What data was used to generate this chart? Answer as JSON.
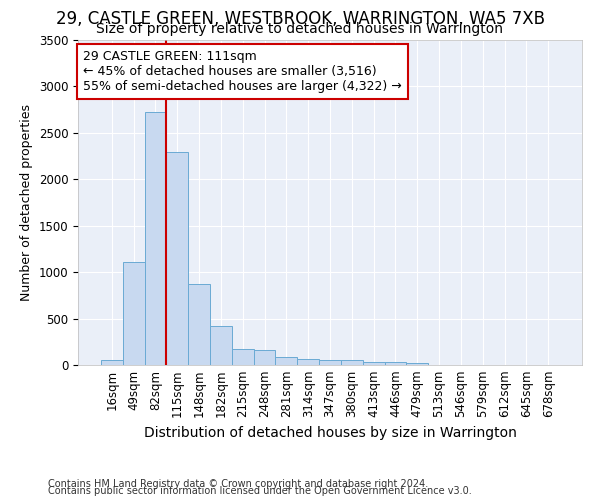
{
  "title1": "29, CASTLE GREEN, WESTBROOK, WARRINGTON, WA5 7XB",
  "title2": "Size of property relative to detached houses in Warrington",
  "xlabel": "Distribution of detached houses by size in Warrington",
  "ylabel": "Number of detached properties",
  "categories": [
    "16sqm",
    "49sqm",
    "82sqm",
    "115sqm",
    "148sqm",
    "182sqm",
    "215sqm",
    "248sqm",
    "281sqm",
    "314sqm",
    "347sqm",
    "380sqm",
    "413sqm",
    "446sqm",
    "479sqm",
    "513sqm",
    "546sqm",
    "579sqm",
    "612sqm",
    "645sqm",
    "678sqm"
  ],
  "values": [
    55,
    1110,
    2730,
    2290,
    870,
    420,
    170,
    165,
    90,
    65,
    55,
    50,
    30,
    30,
    20,
    5,
    3,
    2,
    1,
    1,
    1
  ],
  "bar_color": "#c8d9f0",
  "bar_edge_color": "#6aaad4",
  "bg_color": "#eaeff8",
  "grid_color": "#ffffff",
  "vline_color": "#cc0000",
  "annotation_line1": "29 CASTLE GREEN: 111sqm",
  "annotation_line2": "← 45% of detached houses are smaller (3,516)",
  "annotation_line3": "55% of semi-detached houses are larger (4,322) →",
  "annotation_box_edgecolor": "#cc0000",
  "footer1": "Contains HM Land Registry data © Crown copyright and database right 2024.",
  "footer2": "Contains public sector information licensed under the Open Government Licence v3.0.",
  "ylim_max": 3500,
  "title_fontsize": 12,
  "subtitle_fontsize": 10,
  "xlabel_fontsize": 10,
  "ylabel_fontsize": 9,
  "tick_fontsize": 8.5,
  "annot_fontsize": 9,
  "footer_fontsize": 7,
  "vline_xindex": 3
}
